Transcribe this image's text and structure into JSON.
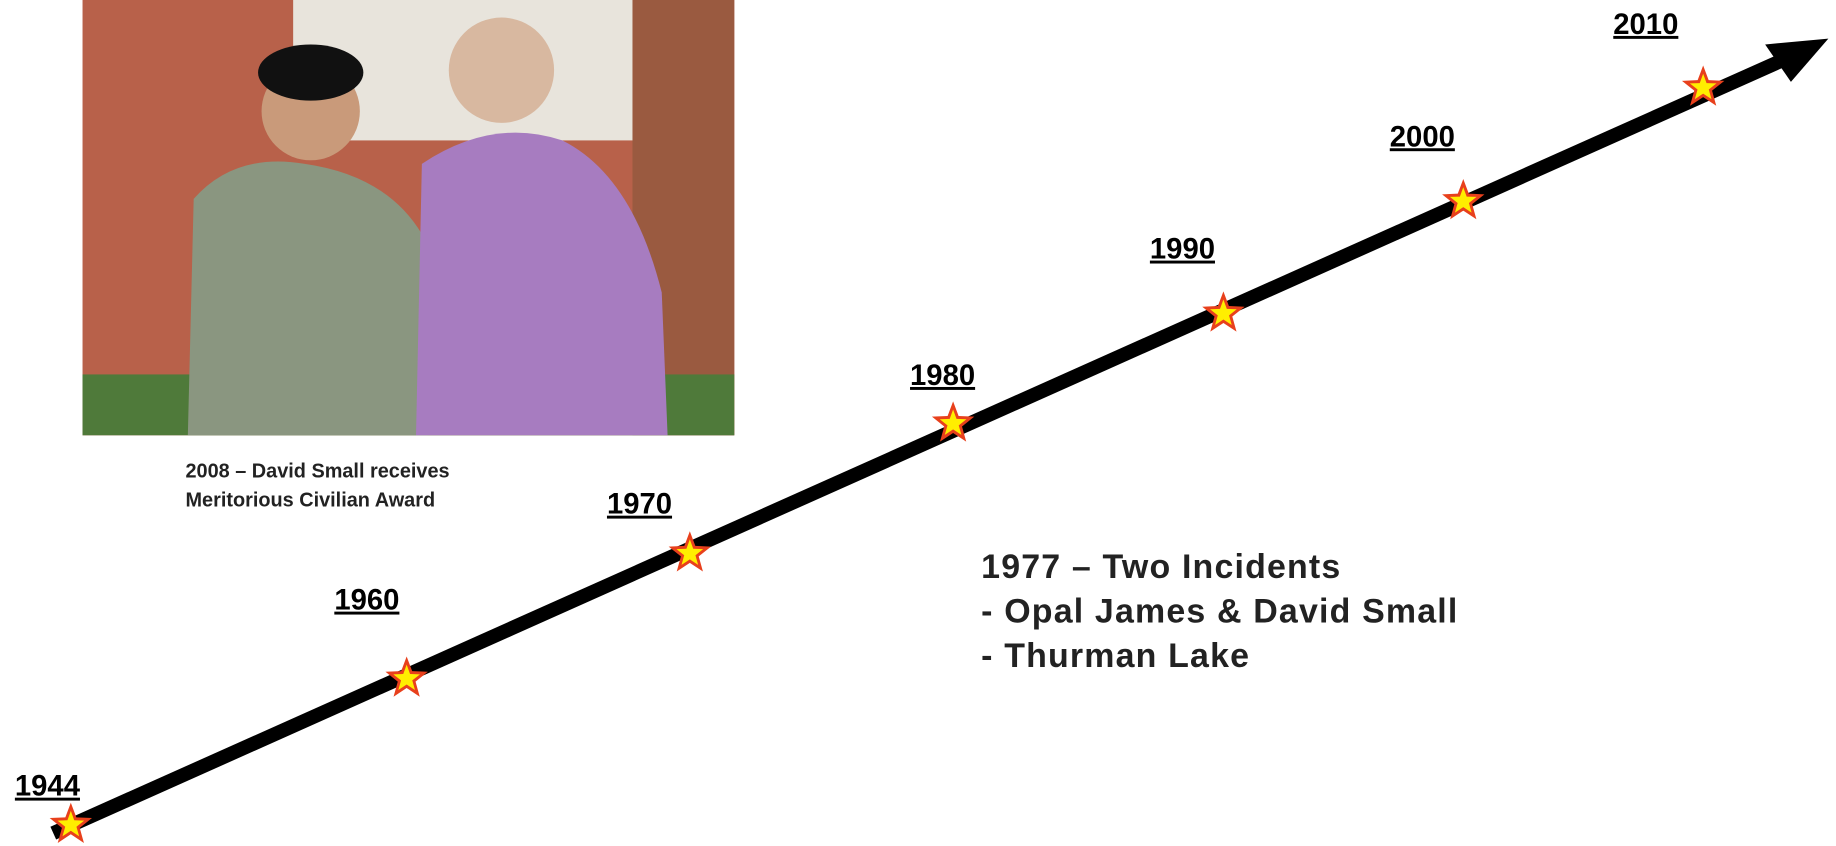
{
  "timeline": {
    "years": [
      "1944",
      "1960",
      "1970",
      "1980",
      "1990",
      "2000",
      "2010"
    ]
  },
  "photo": {
    "caption": [
      "2008 – David Small receives",
      "Meritorious Civilian Award"
    ]
  },
  "note": {
    "lines": [
      "1977 – Two Incidents",
      "- Opal James & David Small",
      "- Thurman Lake"
    ]
  }
}
